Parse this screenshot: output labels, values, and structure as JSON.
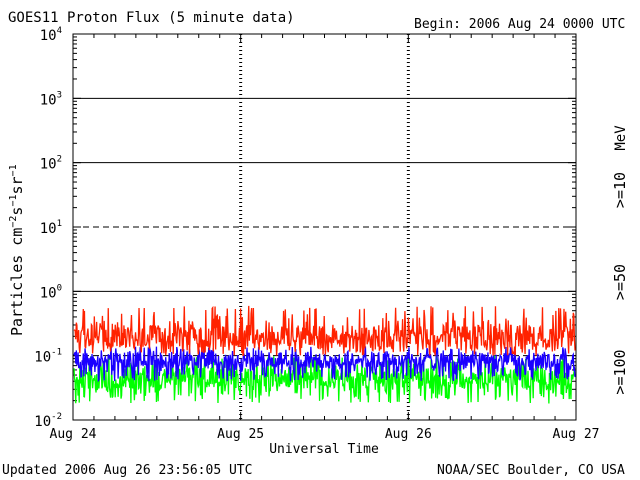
{
  "header": {
    "title": "GOES11 Proton Flux (5 minute data)",
    "begin": "Begin: 2006 Aug 24 0000 UTC"
  },
  "footer": {
    "updated": "Updated 2006 Aug 26 23:56:05 UTC",
    "credit": "NOAA/SEC Boulder, CO USA"
  },
  "colors": {
    "ge10": "#ff2200",
    "ge50": "#1a00ff",
    "ge100": "#00ff00",
    "axis": "#000000"
  },
  "chart_data": {
    "type": "line",
    "title": "GOES11 Proton Flux (5 minute data)",
    "xlabel": "Universal Time",
    "ylabel": "Particles cm⁻²s⁻¹sr⁻¹",
    "ylabel_parts": {
      "base": "Particles cm",
      "s": "s",
      "sr": "sr",
      "exp2": "−2",
      "exp1": "−1"
    },
    "yscale": "log",
    "ylim": [
      0.01,
      10000
    ],
    "ytick_bases": [
      "10",
      "10",
      "10",
      "10",
      "10",
      "10",
      "10"
    ],
    "ytick_exponents": [
      "-2",
      "-1",
      "0",
      "1",
      "2",
      "3",
      "4"
    ],
    "xlim": [
      "2006-08-24",
      "2006-08-27"
    ],
    "x_ticks": [
      "Aug 24",
      "Aug 25",
      "Aug 26",
      "Aug 27"
    ],
    "units_label": "MeV",
    "grid": "horizontal lines at each decade; dashed at 10^1 and 10^-1; dashed vertical day markers",
    "legend": "right side, vertical text",
    "series": [
      {
        "name": ">=10",
        "color": "#ff2200",
        "typical": 0.2,
        "range": [
          0.1,
          0.6
        ]
      },
      {
        "name": ">=50",
        "color": "#1a00ff",
        "typical": 0.085,
        "range": [
          0.04,
          0.14
        ]
      },
      {
        "name": ">=100",
        "color": "#00ff00",
        "typical": 0.045,
        "range": [
          0.018,
          0.1
        ]
      }
    ]
  }
}
